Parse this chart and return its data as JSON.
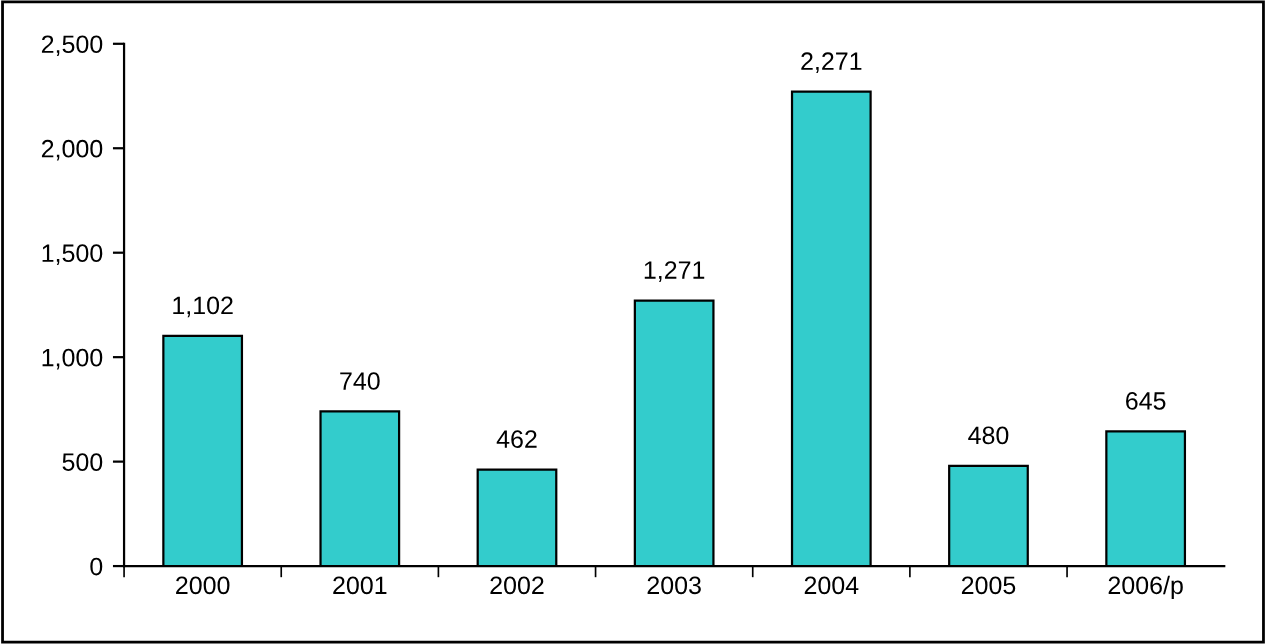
{
  "chart_data": {
    "type": "bar",
    "categories": [
      "2000",
      "2001",
      "2002",
      "2003",
      "2004",
      "2005",
      "2006/p"
    ],
    "values": [
      1102,
      740,
      462,
      1271,
      2271,
      480,
      645
    ],
    "value_labels": [
      "1,102",
      "740",
      "462",
      "1,271",
      "2,271",
      "480",
      "645"
    ],
    "color": "#33cccc",
    "ylim": [
      0,
      2500
    ],
    "yticks": [
      0,
      {
        "value": 500,
        "label": "500"
      },
      {
        "value": 1000,
        "label": "1,000"
      },
      {
        "value": 1500,
        "label": "1,500"
      },
      {
        "value": 2000,
        "label": "2,000"
      },
      {
        "value": 2500,
        "label": "2,500"
      }
    ],
    "grid": false,
    "legend": false
  }
}
